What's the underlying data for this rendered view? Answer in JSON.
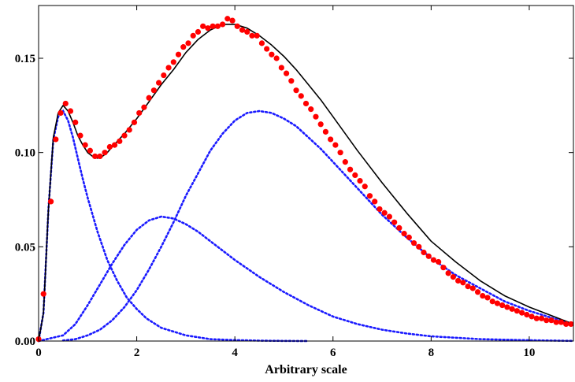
{
  "chart_data": {
    "type": "scatter",
    "title": "",
    "xlabel": "Arbitrary scale",
    "ylabel": "",
    "xlim": [
      0,
      10.9
    ],
    "ylim": [
      0,
      0.178
    ],
    "grid": false,
    "x_ticks": [
      0,
      2,
      4,
      6,
      8,
      10
    ],
    "x_tick_labels": [
      "0",
      "2",
      "4",
      "6",
      "8",
      "10"
    ],
    "y_ticks": [
      0,
      0.05,
      0.1,
      0.15
    ],
    "y_tick_labels": [
      "0.00",
      "0.05",
      "0.10",
      "0.15"
    ],
    "colors": {
      "points": "#ff0000",
      "fit": "#000000",
      "components": "#1a1aff"
    },
    "series": [
      {
        "kind": "points",
        "x": [
          0.0,
          0.1,
          0.25,
          0.35,
          0.45,
          0.55,
          0.65,
          0.75,
          0.85,
          0.95,
          1.05,
          1.15,
          1.25,
          1.35,
          1.45,
          1.55,
          1.65,
          1.75,
          1.85,
          1.95,
          2.05,
          2.15,
          2.25,
          2.35,
          2.45,
          2.55,
          2.65,
          2.75,
          2.85,
          2.95,
          3.05,
          3.15,
          3.25,
          3.35,
          3.45,
          3.55,
          3.65,
          3.75,
          3.85,
          3.95,
          4.05,
          4.15,
          4.25,
          4.35,
          4.45,
          4.55,
          4.65,
          4.75,
          4.85,
          4.95,
          5.05,
          5.15,
          5.25,
          5.35,
          5.45,
          5.55,
          5.65,
          5.75,
          5.85,
          5.95,
          6.05,
          6.15,
          6.25,
          6.35,
          6.45,
          6.55,
          6.65,
          6.75,
          6.85,
          6.95,
          7.05,
          7.15,
          7.25,
          7.35,
          7.45,
          7.55,
          7.65,
          7.75,
          7.85,
          7.95,
          8.05,
          8.15,
          8.25,
          8.35,
          8.45,
          8.55,
          8.65,
          8.75,
          8.85,
          8.95,
          9.05,
          9.15,
          9.25,
          9.35,
          9.45,
          9.55,
          9.65,
          9.75,
          9.85,
          9.95,
          10.05,
          10.15,
          10.25,
          10.35,
          10.45,
          10.55,
          10.65,
          10.75,
          10.85
        ],
        "y": [
          0.001,
          0.025,
          0.074,
          0.107,
          0.121,
          0.126,
          0.122,
          0.116,
          0.109,
          0.104,
          0.101,
          0.098,
          0.098,
          0.1,
          0.103,
          0.104,
          0.106,
          0.109,
          0.112,
          0.116,
          0.121,
          0.124,
          0.129,
          0.133,
          0.137,
          0.141,
          0.145,
          0.148,
          0.152,
          0.156,
          0.158,
          0.162,
          0.164,
          0.167,
          0.166,
          0.167,
          0.167,
          0.168,
          0.171,
          0.17,
          0.167,
          0.165,
          0.164,
          0.162,
          0.162,
          0.158,
          0.155,
          0.152,
          0.15,
          0.145,
          0.142,
          0.138,
          0.133,
          0.13,
          0.126,
          0.123,
          0.119,
          0.115,
          0.111,
          0.107,
          0.104,
          0.1,
          0.095,
          0.091,
          0.088,
          0.085,
          0.082,
          0.077,
          0.074,
          0.07,
          0.068,
          0.066,
          0.063,
          0.06,
          0.057,
          0.055,
          0.052,
          0.05,
          0.047,
          0.045,
          0.043,
          0.042,
          0.039,
          0.036,
          0.034,
          0.032,
          0.031,
          0.029,
          0.028,
          0.026,
          0.024,
          0.023,
          0.021,
          0.02,
          0.019,
          0.018,
          0.017,
          0.016,
          0.015,
          0.014,
          0.013,
          0.012,
          0.012,
          0.011,
          0.011,
          0.01,
          0.01,
          0.009,
          0.009
        ]
      },
      {
        "kind": "fit-line",
        "x": [
          0,
          0.1,
          0.2,
          0.3,
          0.4,
          0.5,
          0.6,
          0.7,
          0.8,
          0.9,
          1.0,
          1.1,
          1.2,
          1.3,
          1.4,
          1.5,
          1.75,
          2.0,
          2.25,
          2.5,
          2.75,
          3.0,
          3.25,
          3.5,
          3.75,
          4.0,
          4.25,
          4.5,
          4.75,
          5.0,
          5.25,
          5.5,
          5.75,
          6.0,
          6.5,
          7.0,
          7.5,
          8.0,
          8.5,
          9.0,
          9.5,
          10.0,
          10.5,
          10.9
        ],
        "y": [
          0,
          0.015,
          0.07,
          0.108,
          0.121,
          0.125,
          0.122,
          0.116,
          0.109,
          0.104,
          0.1,
          0.098,
          0.097,
          0.098,
          0.1,
          0.103,
          0.11,
          0.118,
          0.127,
          0.136,
          0.144,
          0.153,
          0.16,
          0.165,
          0.168,
          0.168,
          0.166,
          0.162,
          0.157,
          0.151,
          0.144,
          0.136,
          0.128,
          0.119,
          0.101,
          0.084,
          0.068,
          0.053,
          0.042,
          0.032,
          0.024,
          0.018,
          0.013,
          0.009
        ]
      },
      {
        "kind": "component-1",
        "x": [
          0,
          0.1,
          0.2,
          0.3,
          0.4,
          0.5,
          0.6,
          0.7,
          0.8,
          0.9,
          1.0,
          1.2,
          1.4,
          1.6,
          1.8,
          2.0,
          2.2,
          2.5,
          3.0,
          3.5,
          4.0,
          4.5,
          5.0,
          5.5
        ],
        "y": [
          0,
          0.015,
          0.07,
          0.107,
          0.119,
          0.122,
          0.117,
          0.108,
          0.097,
          0.086,
          0.076,
          0.058,
          0.043,
          0.032,
          0.023,
          0.017,
          0.012,
          0.007,
          0.003,
          0.001,
          0.0005,
          0.0002,
          0.0001,
          0
        ]
      },
      {
        "kind": "component-2",
        "x": [
          0,
          0.5,
          0.75,
          1.0,
          1.25,
          1.5,
          1.75,
          2.0,
          2.25,
          2.5,
          2.75,
          3.0,
          3.25,
          3.5,
          3.75,
          4.0,
          4.5,
          5.0,
          5.5,
          6.0,
          6.5,
          7.0,
          7.5,
          8.0,
          9.0,
          10.0,
          10.9
        ],
        "y": [
          0,
          0.003,
          0.009,
          0.019,
          0.03,
          0.041,
          0.051,
          0.059,
          0.064,
          0.066,
          0.065,
          0.062,
          0.058,
          0.053,
          0.048,
          0.043,
          0.034,
          0.026,
          0.019,
          0.013,
          0.009,
          0.006,
          0.004,
          0.0025,
          0.001,
          0.0004,
          0.0001
        ]
      },
      {
        "kind": "component-3",
        "x": [
          0.5,
          0.75,
          1.0,
          1.25,
          1.5,
          1.75,
          2.0,
          2.25,
          2.5,
          2.75,
          3.0,
          3.25,
          3.5,
          3.75,
          4.0,
          4.25,
          4.5,
          4.75,
          5.0,
          5.25,
          5.5,
          5.75,
          6.0,
          6.5,
          7.0,
          7.5,
          8.0,
          8.5,
          9.0,
          9.5,
          10.0,
          10.5,
          10.9
        ],
        "y": [
          0.0003,
          0.001,
          0.003,
          0.006,
          0.011,
          0.018,
          0.027,
          0.038,
          0.05,
          0.063,
          0.077,
          0.089,
          0.101,
          0.11,
          0.117,
          0.121,
          0.122,
          0.121,
          0.118,
          0.114,
          0.108,
          0.102,
          0.095,
          0.081,
          0.067,
          0.055,
          0.044,
          0.035,
          0.028,
          0.021,
          0.016,
          0.012,
          0.009
        ]
      }
    ]
  }
}
